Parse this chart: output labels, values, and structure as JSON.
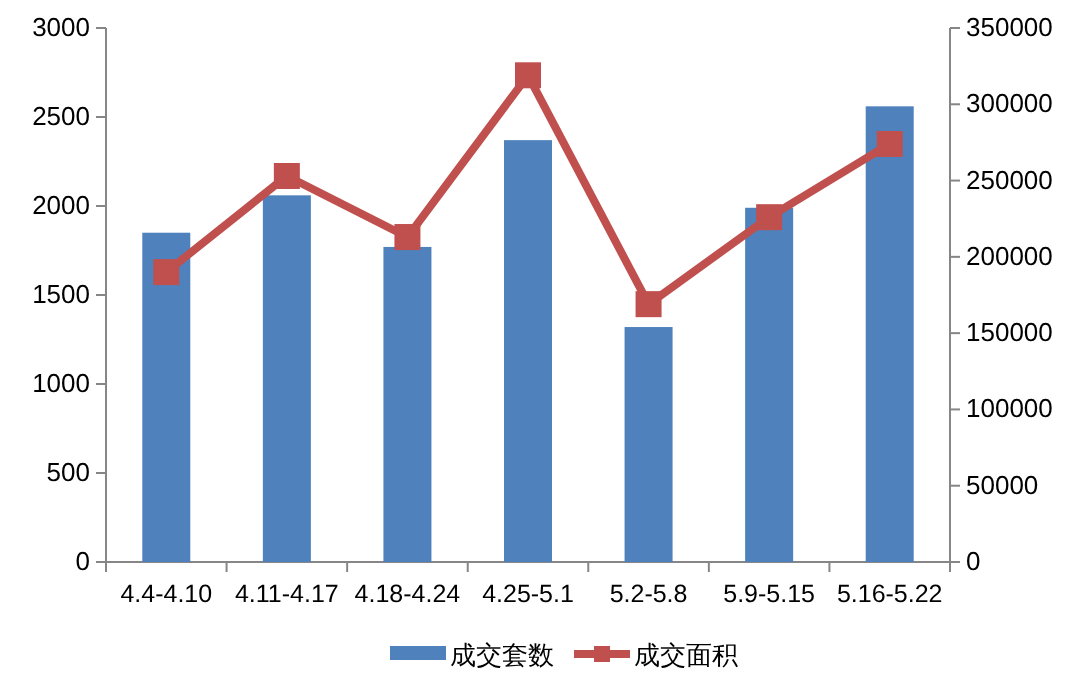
{
  "chart_data": {
    "type": "bar",
    "categories": [
      "4.4-4.10",
      "4.11-4.17",
      "4.18-4.24",
      "4.25-5.1",
      "5.2-5.8",
      "5.9-5.15",
      "5.16-5.22"
    ],
    "series": [
      {
        "name": "成交套数",
        "color": "#4f81bd",
        "values": [
          1850,
          2060,
          1770,
          2370,
          1320,
          1990,
          2560
        ]
      },
      {
        "name": "成交面积",
        "type": "line",
        "axis": "y2",
        "color": "#c0504d",
        "marker": "square",
        "values": [
          190000,
          253000,
          213000,
          319000,
          169000,
          226000,
          274000
        ]
      }
    ],
    "ylim": [
      0,
      3000
    ],
    "yticks": [
      0,
      500,
      1000,
      1500,
      2000,
      2500,
      3000
    ],
    "y2lim": [
      0,
      350000
    ],
    "y2ticks": [
      0,
      50000,
      100000,
      150000,
      200000,
      250000,
      300000,
      350000
    ],
    "grid": false,
    "legend": "bottom"
  }
}
